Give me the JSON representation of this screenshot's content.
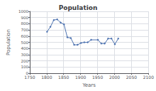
{
  "chart_data": {
    "type": "line",
    "title": "Population",
    "xlabel": "Years",
    "ylabel": "Population",
    "x": [
      1801,
      1811,
      1821,
      1831,
      1841,
      1851,
      1861,
      1871,
      1881,
      1891,
      1901,
      1911,
      1921,
      1931,
      1951,
      1961,
      1971,
      1981,
      1991,
      2001,
      2011
    ],
    "values": [
      670,
      750,
      860,
      870,
      820,
      790,
      580,
      570,
      460,
      460,
      490,
      500,
      500,
      540,
      540,
      480,
      480,
      560,
      560,
      470,
      560
    ],
    "color": "#4C72B0",
    "marker": "diamond",
    "xlim": [
      1750,
      2100
    ],
    "xticks": [
      1750,
      1800,
      1850,
      1900,
      1950,
      2000,
      2050,
      2100
    ],
    "ylim": [
      0,
      1000
    ],
    "yticks": [
      0,
      100,
      200,
      300,
      400,
      500,
      600,
      700,
      800,
      900,
      1000
    ],
    "grid": true
  }
}
